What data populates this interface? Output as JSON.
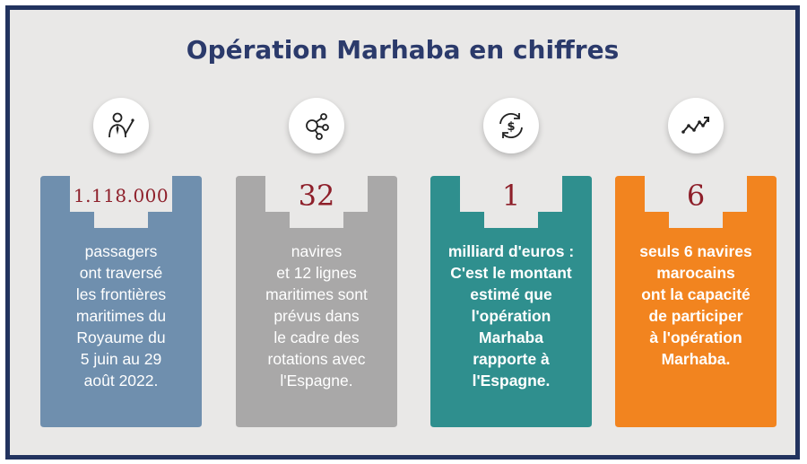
{
  "title": "Opération Marhaba en chiffres",
  "colors": {
    "frame_border": "#22335f",
    "background": "#e9e8e7",
    "title": "#2b3a6b",
    "number": "#8e1f2a"
  },
  "cards": [
    {
      "icon": "person-tie-icon",
      "number": "1.118.000",
      "color": "#6f8fae",
      "description": "passagers\nont traversé\nles frontières\nmaritimes du\nRoyaume du\n5 juin au 29\naoût 2022."
    },
    {
      "icon": "network-nodes-icon",
      "number": "32",
      "color": "#a9a8a8",
      "description": "navires\net 12 lignes\nmaritimes sont\nprévus dans\nle cadre des\nrotations avec\nl'Espagne."
    },
    {
      "icon": "currency-exchange-icon",
      "number": "1",
      "color": "#2f8f8e",
      "description": "milliard d'euros :\nC'est le montant\nestimé que\nl'opération\nMarhaba\nrapporte à\nl'Espagne."
    },
    {
      "icon": "trend-line-icon",
      "number": "6",
      "color": "#f2841f",
      "description": "seuls 6 navires\nmarocains\nont la capacité\nde participer\nà l'opération\nMarhaba."
    }
  ]
}
